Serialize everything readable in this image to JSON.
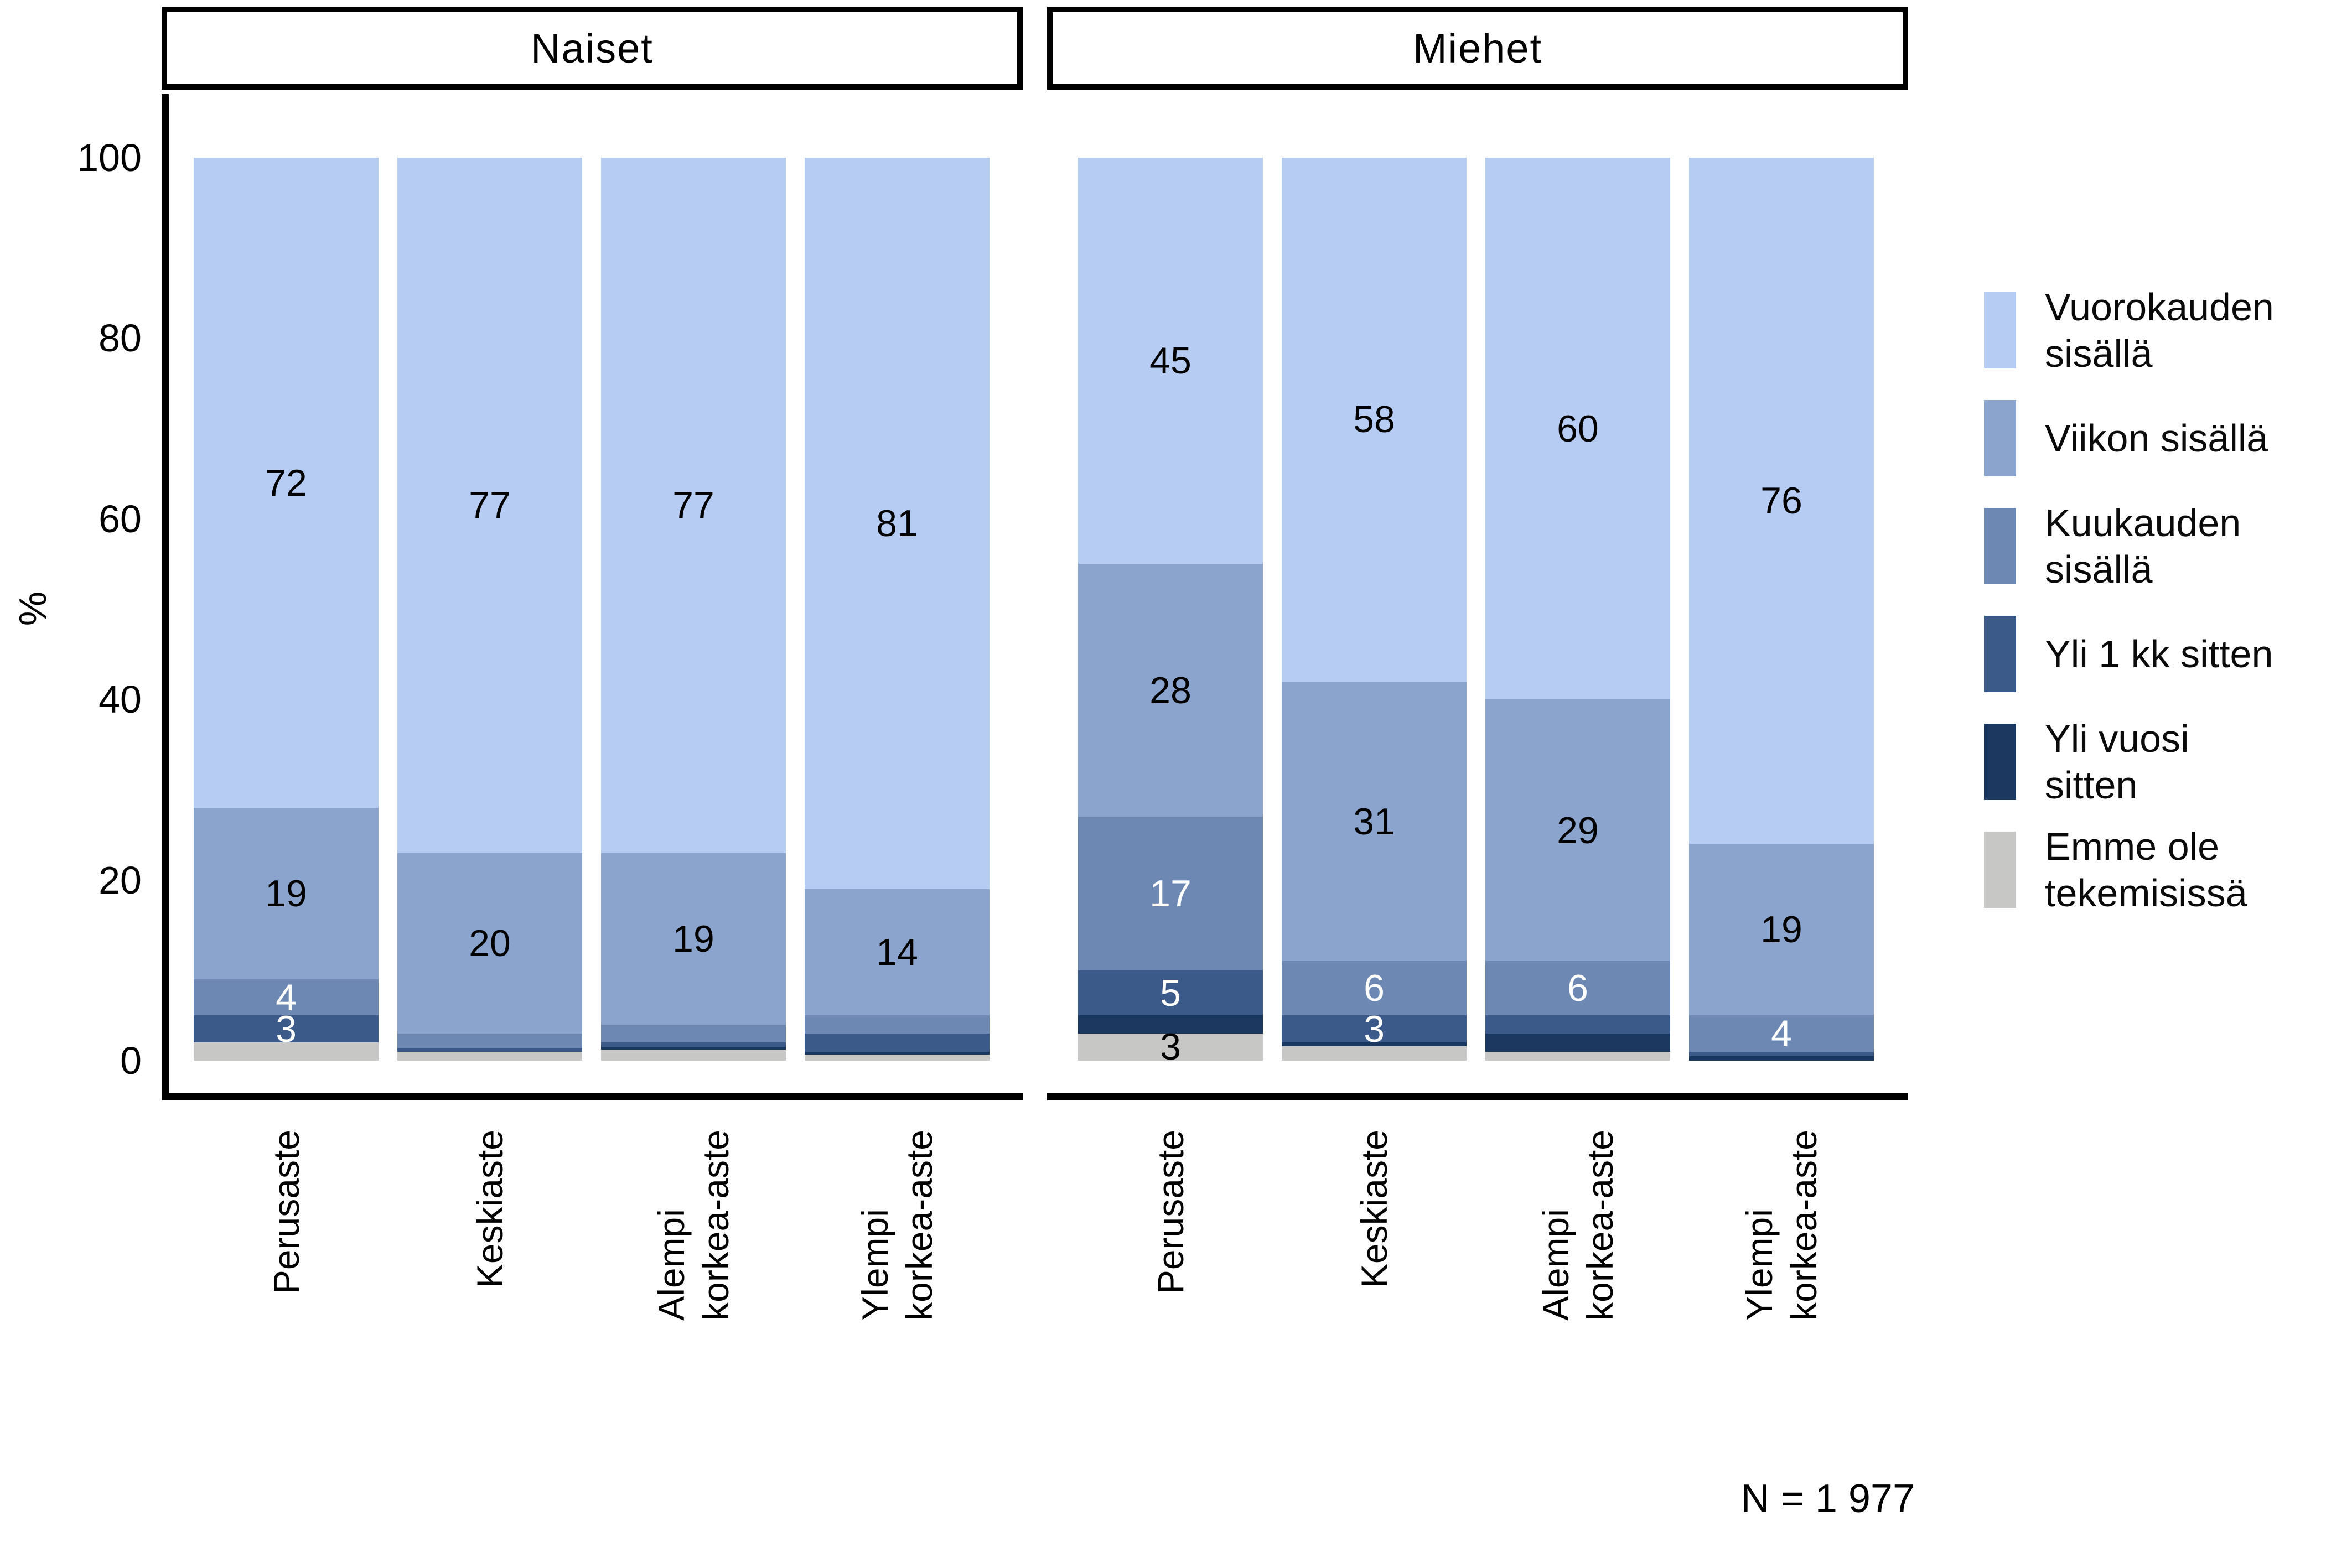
{
  "panels": [
    {
      "title": "Naiset"
    },
    {
      "title": "Miehet"
    }
  ],
  "y_axis": {
    "label": "%",
    "ticks": [
      0,
      20,
      40,
      60,
      80,
      100
    ]
  },
  "x_axis": {
    "categories_display": [
      "Perusaste",
      "Keskiaste",
      "Alempi\nkorkea-aste",
      "Ylempi\nkorkea-aste"
    ]
  },
  "note": "N = 1 977",
  "legend": [
    {
      "label": "Vuorokauden\nsisällä",
      "color": "#b6ccf3",
      "value_text_color": "#000000"
    },
    {
      "label": "Viikon sisällä",
      "color": "#8ba4cd",
      "value_text_color": "#000000"
    },
    {
      "label": "Kuukauden\nsisällä",
      "color": "#6d88b3",
      "value_text_color": "#ffffff"
    },
    {
      "label": "Yli 1 kk sitten",
      "color": "#3c5a89",
      "value_text_color": "#ffffff"
    },
    {
      "label": "Yli vuosi\nsitten",
      "color": "#19375f",
      "value_text_color": "#ffffff"
    },
    {
      "label": "Emme ole\ntekemisissä",
      "color": "#c7c7c6",
      "value_text_color": "#000000"
    }
  ],
  "chart_data": {
    "type": "bar",
    "stacked": true,
    "title": "",
    "xlabel": "",
    "ylabel": "%",
    "ylim": [
      0,
      100
    ],
    "grid": false,
    "legend_position": "right",
    "categories": [
      "Perusaste",
      "Keskiaste",
      "Alempi korkea-aste",
      "Ylempi korkea-aste"
    ],
    "facets": [
      {
        "name": "Naiset",
        "series": [
          {
            "name": "Vuorokauden sisällä",
            "values": [
              72,
              77,
              77,
              81
            ]
          },
          {
            "name": "Viikon sisällä",
            "values": [
              19,
              20,
              19,
              14
            ]
          },
          {
            "name": "Kuukauden sisällä",
            "values": [
              4,
              1.6,
              2,
              2
            ]
          },
          {
            "name": "Yli 1 kk sitten",
            "values": [
              3,
              0.4,
              0.5,
              2
            ]
          },
          {
            "name": "Yli vuosi sitten",
            "values": [
              0,
              0,
              0.3,
              0.3
            ]
          },
          {
            "name": "Emme ole tekemisissä",
            "values": [
              2,
              1,
              1.2,
              0.7
            ]
          }
        ],
        "shown_value_labels": [
          [
            72,
            19,
            4,
            3
          ],
          [
            77,
            20
          ],
          [
            77,
            19
          ],
          [
            81,
            14
          ]
        ]
      },
      {
        "name": "Miehet",
        "series": [
          {
            "name": "Vuorokauden sisällä",
            "values": [
              45,
              58,
              60,
              76
            ]
          },
          {
            "name": "Viikon sisällä",
            "values": [
              28,
              31,
              29,
              19
            ]
          },
          {
            "name": "Kuukauden sisällä",
            "values": [
              17,
              6,
              6,
              4
            ]
          },
          {
            "name": "Yli 1 kk sitten",
            "values": [
              5,
              3,
              2,
              0.5
            ]
          },
          {
            "name": "Yli vuosi sitten",
            "values": [
              2,
              0.4,
              2,
              0.5
            ]
          },
          {
            "name": "Emme ole tekemisissä",
            "values": [
              3,
              1.6,
              1,
              0
            ]
          }
        ],
        "shown_value_labels": [
          [
            45,
            28,
            17,
            5,
            3
          ],
          [
            58,
            31,
            6,
            3
          ],
          [
            60,
            29,
            6
          ],
          [
            76,
            19,
            4
          ]
        ]
      }
    ],
    "sample_size_note": "N = 1 977"
  }
}
